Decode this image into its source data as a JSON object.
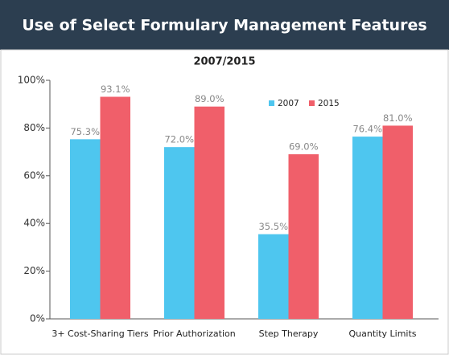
{
  "chart_data": {
    "type": "bar",
    "title": "Use of Select Formulary Management Features",
    "subtitle": "2007/2015",
    "categories": [
      "3+ Cost-Sharing Tiers",
      "Prior Authorization",
      "Step Therapy",
      "Quantity Limits"
    ],
    "series": [
      {
        "name": "2007",
        "color": "#4ec6ef",
        "values": [
          75.3,
          72.0,
          35.5,
          76.4
        ],
        "value_labels": [
          "75.3%",
          "72.0%",
          "35.5%",
          "76.4%"
        ]
      },
      {
        "name": "2015",
        "color": "#f05f6a",
        "values": [
          93.1,
          89.0,
          69.0,
          81.0
        ],
        "value_labels": [
          "93.1%",
          "89.0%",
          "69.0%",
          "81.0%"
        ]
      }
    ],
    "ylim": [
      0,
      100
    ],
    "yticks": [
      {
        "value": 0,
        "label": "0%"
      },
      {
        "value": 20,
        "label": "20%"
      },
      {
        "value": 40,
        "label": "40%"
      },
      {
        "value": 60,
        "label": "60%"
      },
      {
        "value": 80,
        "label": "80%"
      },
      {
        "value": 100,
        "label": "100%"
      }
    ],
    "grid": false
  }
}
